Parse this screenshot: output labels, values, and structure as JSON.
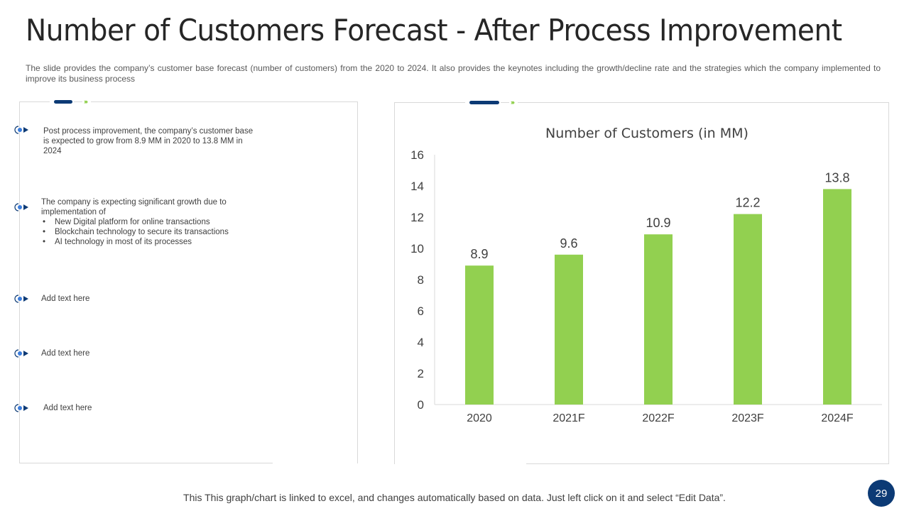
{
  "slide": {
    "title": "Number of Customers Forecast - After  Process Improvement",
    "subtitle": "The slide provides  the company’s customer base forecast (number of customers) from the 2020 to 2024. It also provides  the keynotes including the growth/decline  rate and the strategies which the company implemented  to improve  its business process",
    "footer_note": "This This graph/chart is linked  to excel, and changes automatically based on data. Just left click on it and select “Edit Data”.",
    "page_number": "29"
  },
  "colors": {
    "accent_navy": "#0c3a75",
    "accent_green": "#92d050",
    "bullet_blue": "#3b7ddd"
  },
  "keynotes": [
    {
      "icon": "bullet-target-arrow-icon",
      "text": "Post process improvement, the company’s customer base is expected to  grow from 8.9 MM  in 2020 to  13.8 MM  in 2024"
    },
    {
      "icon": "bullet-target-arrow-icon",
      "text": "The company is expecting significant growth due to implementation of",
      "sub_items": [
        "New Digital platform for online transactions",
        "Blockchain technology to secure its transactions",
        "AI  technology in most of its processes"
      ]
    },
    {
      "icon": "bullet-target-arrow-icon",
      "text": "Add text here"
    },
    {
      "icon": "bullet-target-arrow-icon",
      "text": "Add text here"
    },
    {
      "icon": "bullet-target-arrow-icon",
      "text": "Add text here"
    }
  ],
  "chart_data": {
    "type": "bar",
    "title": "Number of Customers (in MM)",
    "categories": [
      "2020",
      "2021F",
      "2022F",
      "2023F",
      "2024F"
    ],
    "values": [
      8.9,
      9.6,
      10.9,
      12.2,
      13.8
    ],
    "data_labels": [
      "8.9",
      "9.6",
      "10.9",
      "12.2",
      "13.8"
    ],
    "xlabel": "",
    "ylabel": "",
    "ylim": [
      0,
      16
    ],
    "yticks": [
      0,
      2,
      4,
      6,
      8,
      10,
      12,
      14,
      16
    ],
    "grid": false,
    "legend": "none",
    "bar_color": "#92d050"
  }
}
